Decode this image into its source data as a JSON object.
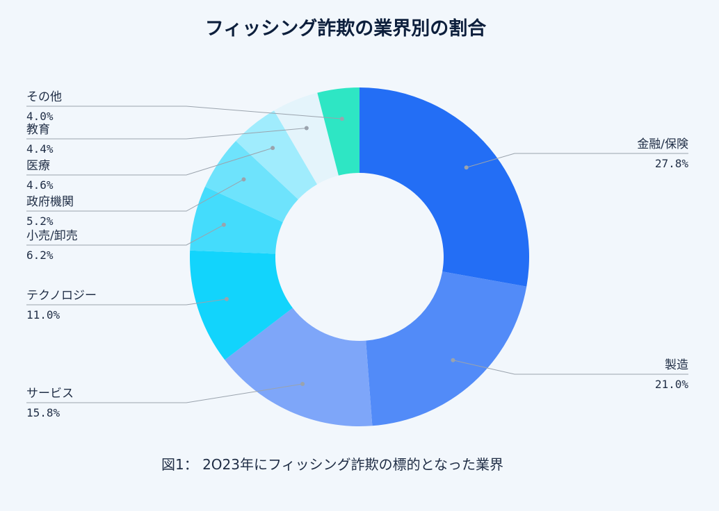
{
  "chart_data": {
    "type": "pie",
    "title": "フィッシング詐欺の業界別の割合",
    "caption": "図1： 2O23年にフィッシング詐欺の標的となった業界",
    "categories": [
      "金融/保険",
      "製造",
      "サービス",
      "テクノロジー",
      "小売/卸売",
      "政府機関",
      "医療",
      "教育",
      "その他"
    ],
    "values": [
      27.8,
      21.0,
      15.8,
      11.0,
      6.2,
      5.2,
      4.6,
      4.4,
      4.0
    ],
    "value_labels": [
      "27.8%",
      "21.0%",
      "15.8%",
      "11.0%",
      "6.2%",
      "5.2%",
      "4.6%",
      "4.4%",
      "4.0%"
    ],
    "colors": [
      "#236ef5",
      "#528bf8",
      "#7ea6f9",
      "#12d4fc",
      "#44dcfc",
      "#6ee3fc",
      "#a0ecfd",
      "#e4f4fb",
      "#2ee6c4"
    ],
    "donut": true,
    "legend": "none"
  }
}
